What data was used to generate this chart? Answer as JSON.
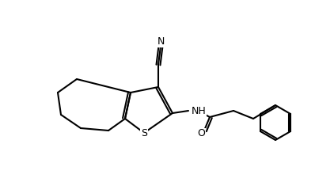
{
  "background_color": "#ffffff",
  "line_color": "#000000",
  "line_width": 1.5,
  "figsize": [
    3.98,
    2.25
  ],
  "dpi": 100,
  "atoms": {
    "S": {
      "label": "S",
      "fontsize": 9
    },
    "N_nh": {
      "label": "NH",
      "fontsize": 9
    },
    "N_cn": {
      "label": "N",
      "fontsize": 9
    },
    "O": {
      "label": "O",
      "fontsize": 9
    }
  }
}
